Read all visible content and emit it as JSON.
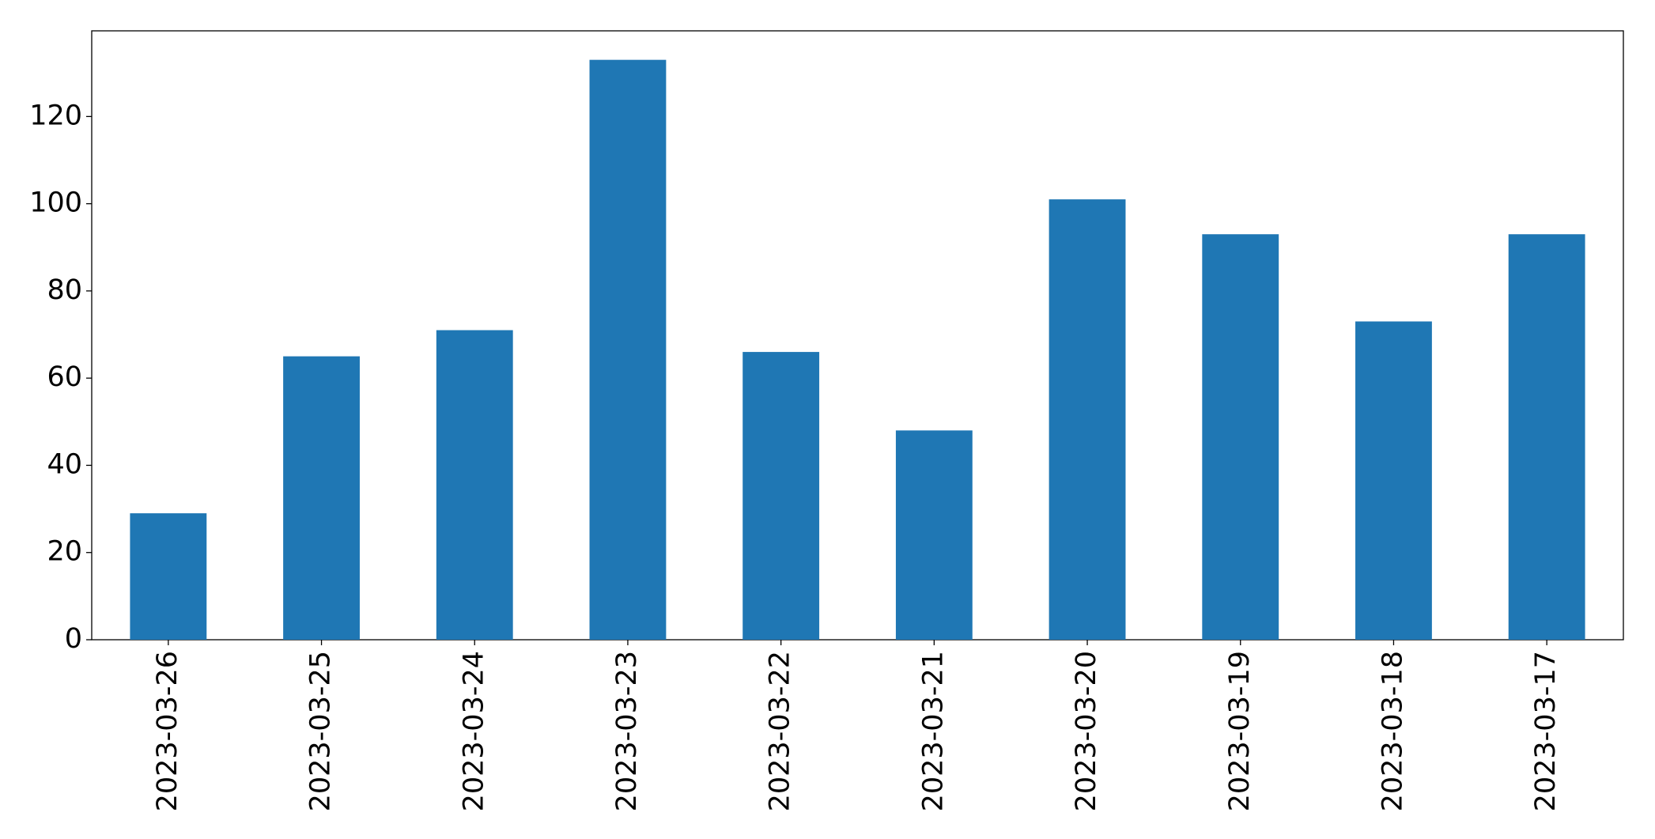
{
  "chart_data": {
    "type": "bar",
    "categories": [
      "2023-03-26",
      "2023-03-25",
      "2023-03-24",
      "2023-03-23",
      "2023-03-22",
      "2023-03-21",
      "2023-03-20",
      "2023-03-19",
      "2023-03-18",
      "2023-03-17"
    ],
    "values": [
      29,
      65,
      71,
      133,
      66,
      48,
      101,
      93,
      73,
      93
    ],
    "color": "#1f77b4",
    "ylim": [
      0,
      139.65
    ],
    "yticks": [
      0,
      20,
      40,
      60,
      80,
      100,
      120
    ],
    "grid": false
  }
}
